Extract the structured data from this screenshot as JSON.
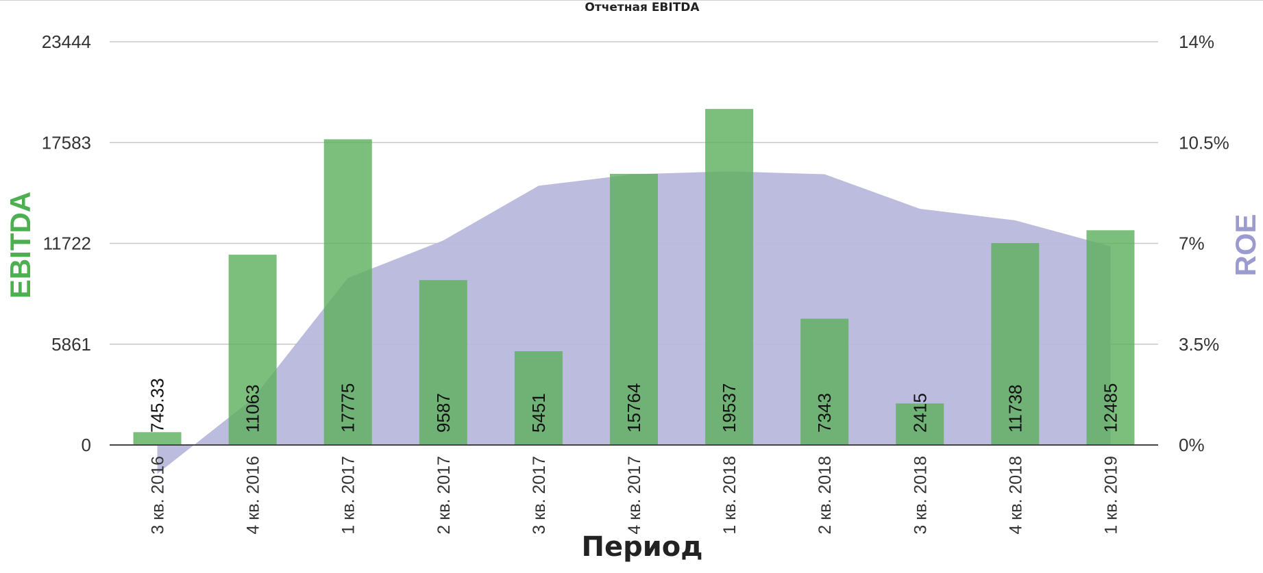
{
  "chart_data": {
    "type": "bar",
    "title": "Отчетная EBITDA",
    "xlabel": "Период",
    "ylabel": "EBITDA",
    "y2label": "ROE",
    "categories": [
      "3 кв. 2016",
      "4 кв. 2016",
      "1 кв. 2017",
      "2 кв. 2017",
      "3 кв. 2017",
      "4 кв. 2017",
      "1 кв. 2018",
      "2 кв. 2018",
      "3 кв. 2018",
      "4 кв. 2018",
      "1 кв. 2019"
    ],
    "bar_labels": [
      "745.33",
      "11063",
      "17775",
      "9587",
      "5451",
      "15764",
      "19537",
      "7343",
      "2415",
      "11738",
      "12485"
    ],
    "series": [
      {
        "type": "bar",
        "axis": "left",
        "values": [
          745.33,
          11063,
          17775,
          9587,
          5451,
          15764,
          19537,
          7343,
          2415,
          11738,
          12485
        ],
        "color": "#5fb05f"
      },
      {
        "type": "area",
        "axis": "right",
        "values": [
          -1.0,
          1.6,
          5.8,
          7.1,
          9.0,
          9.4,
          9.5,
          9.4,
          8.2,
          7.8,
          6.9
        ],
        "color": "#b8b8dc"
      }
    ],
    "ylim": [
      0,
      23444
    ],
    "yticks": [
      "0",
      "5861",
      "11722",
      "17583",
      "23444"
    ],
    "y2lim": [
      0,
      14
    ],
    "y2ticks": [
      "0%",
      "3.5%",
      "7%",
      "10.5%",
      "14%"
    ],
    "grid": true,
    "legend": "none",
    "ylabel_color": "#4caf50",
    "y2label_color": "#9b9bcf"
  }
}
